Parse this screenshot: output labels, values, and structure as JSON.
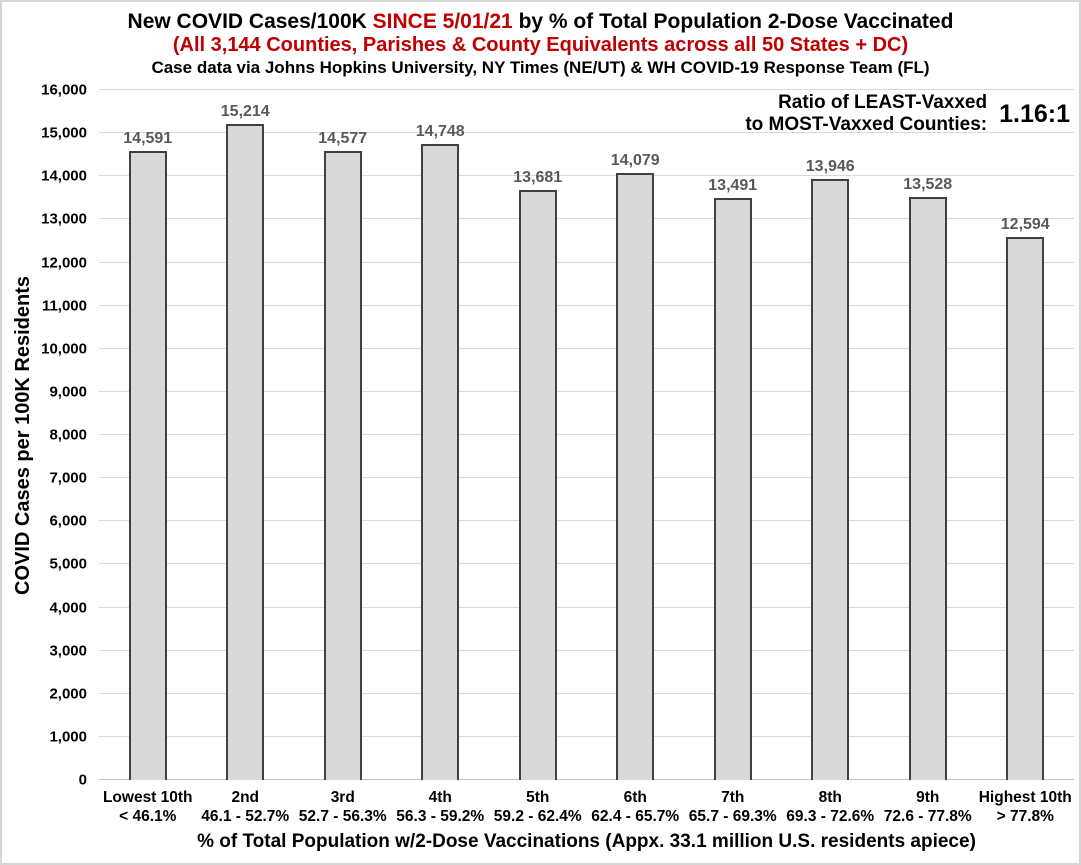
{
  "header": {
    "title_prefix": "New COVID Cases/100K ",
    "title_highlight": "SINCE 5/01/21",
    "title_suffix": " by % of Total Population 2-Dose Vaccinated",
    "subtitle": "(All 3,144 Counties, Parishes & County Equivalents across all 50 States + DC)",
    "source_line": "Case data via Johns Hopkins University, NY Times (NE/UT) & WH COVID-19 Response Team (FL)"
  },
  "annotation": {
    "label_line1": "Ratio of LEAST-Vaxxed",
    "label_line2": "to MOST-Vaxxed Counties:",
    "value": "1.16:1"
  },
  "chart_data": {
    "type": "bar",
    "title": "New COVID Cases/100K SINCE 5/01/21 by % of Total Population 2-Dose Vaccinated",
    "subtitle": "(All 3,144 Counties, Parishes & County Equivalents across all 50 States + DC)",
    "source": "Case data via Johns Hopkins University, NY Times (NE/UT) & WH COVID-19 Response Team (FL)",
    "categories": [
      "Lowest 10th",
      "2nd",
      "3rd",
      "4th",
      "5th",
      "6th",
      "7th",
      "8th",
      "9th",
      "Highest 10th"
    ],
    "category_ranges": [
      "< 46.1%",
      "46.1 - 52.7%",
      "52.7 - 56.3%",
      "56.3 - 59.2%",
      "59.2 - 62.4%",
      "62.4 - 65.7%",
      "65.7 - 69.3%",
      "69.3 - 72.6%",
      "72.6 - 77.8%",
      "> 77.8%"
    ],
    "values": [
      14591,
      15214,
      14577,
      14748,
      13681,
      14079,
      13491,
      13946,
      13528,
      12594
    ],
    "value_labels": [
      "14,591",
      "15,214",
      "14,577",
      "14,748",
      "13,681",
      "14,079",
      "13,491",
      "13,946",
      "13,528",
      "12,594"
    ],
    "xlabel": "% of Total Population w/2-Dose Vaccinations (Appx. 33.1 million U.S. residents apiece)",
    "ylabel": "COVID Cases per 100K Residents",
    "ylim": [
      0,
      16000
    ],
    "ytick_step": 1000,
    "grid": "horizontal",
    "legend": "none",
    "annotation": "Ratio of LEAST-Vaxxed to MOST-Vaxxed Counties: 1.16:1"
  },
  "colors": {
    "accent_red": "#C00000",
    "bar_fill": "#D9D9D9",
    "bar_border": "#404040",
    "value_label_gray": "#595959",
    "gridline": "#D9D9D9",
    "text": "#000000"
  }
}
